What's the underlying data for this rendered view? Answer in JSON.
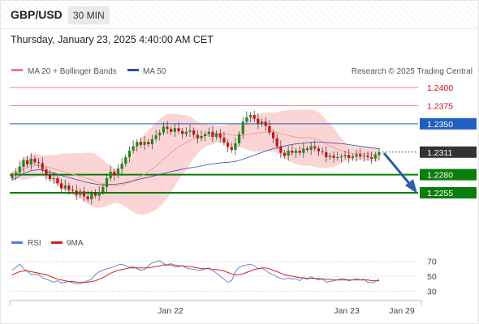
{
  "header": {
    "symbol": "GBP/USD",
    "timeframe": "30 MIN"
  },
  "timestamp": "Thursday, January 23, 2025 4:40:00 AM CET",
  "watermark": "Research © 2025 Trading Central",
  "colors": {
    "resistance": "#f08080",
    "pivot": "#1f5fbf",
    "support": "#0a7d0a",
    "last": "#333333",
    "candle_up": "#1a8a1a",
    "candle_down": "#cc1111",
    "bb_fill": "#fbd5d5",
    "ma20": "#f39b9b",
    "ma50": "#34509a",
    "rsi": "#5b7bd8",
    "rsi_ma": "#d32020",
    "arrow": "#2a5ea8"
  },
  "chart_data": [
    {
      "type": "candlestick",
      "legend": [
        "MA 20 + Bollinger Bands",
        "MA 50"
      ],
      "x_ticks": [
        "Jan 22",
        "Jan 23",
        "Jan 29"
      ],
      "y_range": [
        1.2225,
        1.2415
      ],
      "levels": [
        {
          "label": "1.2400",
          "value": 1.24,
          "kind": "resistance"
        },
        {
          "label": "1.2375",
          "value": 1.2375,
          "kind": "resistance"
        },
        {
          "label": "1.2350",
          "value": 1.235,
          "kind": "pivot"
        },
        {
          "label": "1.2311",
          "value": 1.2311,
          "kind": "last"
        },
        {
          "label": "1.2280",
          "value": 1.228,
          "kind": "support"
        },
        {
          "label": "1.2255",
          "value": 1.2255,
          "kind": "support"
        }
      ],
      "closes": [
        1.2279,
        1.2283,
        1.2291,
        1.23,
        1.2294,
        1.2302,
        1.2297,
        1.2296,
        1.2287,
        1.228,
        1.2274,
        1.2275,
        1.2268,
        1.2261,
        1.2265,
        1.2259,
        1.2258,
        1.2252,
        1.2257,
        1.225,
        1.2246,
        1.2254,
        1.2251,
        1.2256,
        1.2263,
        1.2275,
        1.2284,
        1.2279,
        1.2288,
        1.2295,
        1.2304,
        1.2313,
        1.2319,
        1.2325,
        1.2321,
        1.2325,
        1.2322,
        1.2329,
        1.2334,
        1.2338,
        1.2346,
        1.2343,
        1.2339,
        1.2344,
        1.234,
        1.2336,
        1.2339,
        1.2341,
        1.2335,
        1.233,
        1.2333,
        1.2336,
        1.2339,
        1.2332,
        1.2337,
        1.2331,
        1.2324,
        1.2318,
        1.2314,
        1.2323,
        1.2336,
        1.2353,
        1.2359,
        1.2362,
        1.2357,
        1.235,
        1.2353,
        1.2347,
        1.2338,
        1.233,
        1.2319,
        1.231,
        1.2306,
        1.2313,
        1.231,
        1.2313,
        1.231,
        1.2316,
        1.2314,
        1.2319,
        1.2316,
        1.2312,
        1.2311,
        1.2304,
        1.2306,
        1.2303,
        1.2304,
        1.2305,
        1.2307,
        1.2303,
        1.2305,
        1.2308,
        1.2305,
        1.2306,
        1.2304,
        1.2302,
        1.2307,
        1.2311
      ]
    },
    {
      "type": "line",
      "legend": [
        "RSI",
        "9MA"
      ],
      "y_ticks": [
        "70",
        "50",
        "30"
      ],
      "y_range": [
        20,
        80
      ],
      "rsi": [
        58,
        62,
        66,
        60,
        57,
        52,
        53,
        52,
        48,
        46,
        44,
        42,
        44,
        41,
        42,
        43,
        41,
        40,
        40,
        42,
        44,
        46,
        52,
        56,
        58,
        60,
        61,
        63,
        65,
        66,
        64,
        62,
        63,
        60,
        58,
        59,
        64,
        68,
        69,
        71,
        67,
        65,
        67,
        62,
        63,
        64,
        61,
        60,
        59,
        58,
        58,
        60,
        61,
        58,
        54,
        50,
        46,
        42,
        44,
        56,
        62,
        64,
        65,
        66,
        64,
        60,
        61,
        58,
        54,
        52,
        49,
        47,
        46,
        48,
        46,
        47,
        44,
        48,
        46,
        49,
        47,
        45,
        47,
        42,
        43,
        44,
        45,
        47,
        46,
        44,
        45,
        47,
        45,
        46,
        42,
        41,
        43,
        46
      ],
      "rsi_ma": [
        52,
        54,
        56,
        57,
        57,
        56,
        55,
        54,
        53,
        52,
        50,
        48,
        46,
        45,
        44,
        43,
        43,
        42,
        42,
        42,
        42,
        43,
        44,
        46,
        48,
        51,
        54,
        56,
        58,
        59,
        60,
        61,
        61,
        61,
        61,
        61,
        61,
        62,
        63,
        64,
        65,
        65,
        65,
        65,
        64,
        64,
        63,
        63,
        62,
        61,
        60,
        60,
        60,
        59,
        59,
        58,
        57,
        55,
        53,
        52,
        52,
        53,
        55,
        57,
        59,
        60,
        61,
        61,
        60,
        58,
        56,
        54,
        52,
        51,
        50,
        49,
        48,
        48,
        47,
        47,
        47,
        47,
        46,
        46,
        46,
        45,
        45,
        45,
        45,
        45,
        45,
        45,
        45,
        45,
        45,
        44,
        44,
        44
      ]
    }
  ]
}
